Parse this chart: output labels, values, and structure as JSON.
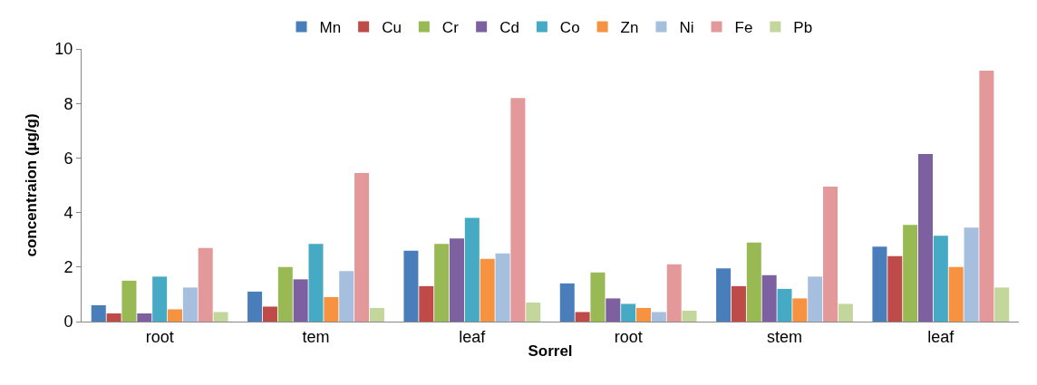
{
  "chart_data": {
    "type": "bar",
    "xlabel": "Sorrel",
    "ylabel": "concentraion (µg/g)",
    "categories": [
      "root",
      "tem",
      "leaf",
      "root",
      "stem",
      "leaf"
    ],
    "ylim": [
      0,
      10
    ],
    "yticks": [
      0,
      2,
      4,
      6,
      8,
      10
    ],
    "legend": "top",
    "series": [
      {
        "name": "Mn",
        "color": "#4a7ebb",
        "values": [
          0.6,
          1.1,
          2.6,
          1.4,
          1.95,
          2.75
        ]
      },
      {
        "name": "Cu",
        "color": "#be4b48",
        "values": [
          0.3,
          0.55,
          1.3,
          0.35,
          1.3,
          2.4
        ]
      },
      {
        "name": "Cr",
        "color": "#98b954",
        "values": [
          1.5,
          2.0,
          2.85,
          1.8,
          2.9,
          3.55
        ]
      },
      {
        "name": "Cd",
        "color": "#7d60a0",
        "values": [
          0.3,
          1.55,
          3.05,
          0.85,
          1.7,
          6.15
        ]
      },
      {
        "name": "Co",
        "color": "#46aac5",
        "values": [
          1.65,
          2.85,
          3.8,
          0.65,
          1.2,
          3.15
        ]
      },
      {
        "name": "Zn",
        "color": "#f69240",
        "values": [
          0.45,
          0.9,
          2.3,
          0.5,
          0.85,
          2.0
        ]
      },
      {
        "name": "Ni",
        "color": "#a7bfde",
        "values": [
          1.25,
          1.85,
          2.5,
          0.35,
          1.65,
          3.45
        ]
      },
      {
        "name": "Fe",
        "color": "#e3999a",
        "values": [
          2.7,
          5.45,
          8.2,
          2.1,
          4.95,
          9.2
        ]
      },
      {
        "name": "Pb",
        "color": "#c3d69b",
        "values": [
          0.35,
          0.5,
          0.7,
          0.4,
          0.65,
          1.25
        ]
      }
    ]
  }
}
